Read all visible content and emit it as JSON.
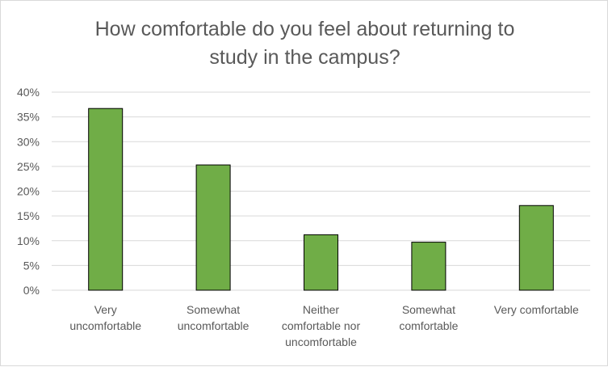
{
  "chart_data": {
    "type": "bar",
    "title_lines": [
      "How comfortable do you feel about returning to",
      "study in the campus?"
    ],
    "categories": [
      [
        "Very",
        "uncomfortable"
      ],
      [
        "Somewhat",
        "uncomfortable"
      ],
      [
        "Neither",
        "comfortable nor",
        "uncomfortable"
      ],
      [
        "Somewhat",
        "comfortable"
      ],
      [
        "Very comfortable"
      ]
    ],
    "values": [
      0.367,
      0.253,
      0.112,
      0.097,
      0.171
    ],
    "ylim": [
      0,
      0.4
    ],
    "yticks": [
      "0%",
      "5%",
      "10%",
      "15%",
      "20%",
      "25%",
      "30%",
      "35%",
      "40%"
    ],
    "grid": true,
    "legend": "none",
    "colors": {
      "bar_fill": "#70ad47",
      "bar_stroke": "#000000",
      "gridline": "#d9d9d9",
      "text": "#595959"
    }
  }
}
